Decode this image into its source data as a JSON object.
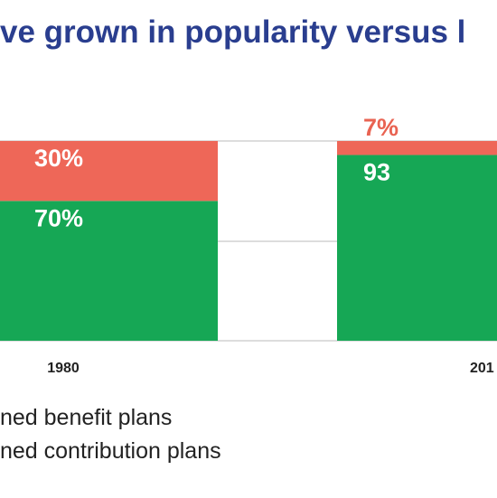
{
  "title": "ve grown in popularity versus l",
  "colors": {
    "title": "#2a3e8f",
    "defined_contribution": "#16a755",
    "defined_benefit": "#ee6758",
    "benefit_label_outside": "#e96352",
    "gridline": "#bbbbbb",
    "bar_label": "#ffffff"
  },
  "legend": [
    {
      "label": "ned benefit plans"
    },
    {
      "label": "ned contribution plans"
    }
  ],
  "chart_data": {
    "type": "bar",
    "stacked": true,
    "categories": [
      "1980",
      "201"
    ],
    "series": [
      {
        "name": "ned contribution plans",
        "values": [
          70,
          93
        ],
        "labels": [
          "70%",
          "93"
        ]
      },
      {
        "name": "ned benefit plans",
        "values": [
          30,
          7
        ],
        "labels": [
          "30%",
          "7%"
        ]
      }
    ],
    "ylim": [
      0,
      100
    ],
    "grid": true,
    "legend_position": "bottom-left"
  }
}
